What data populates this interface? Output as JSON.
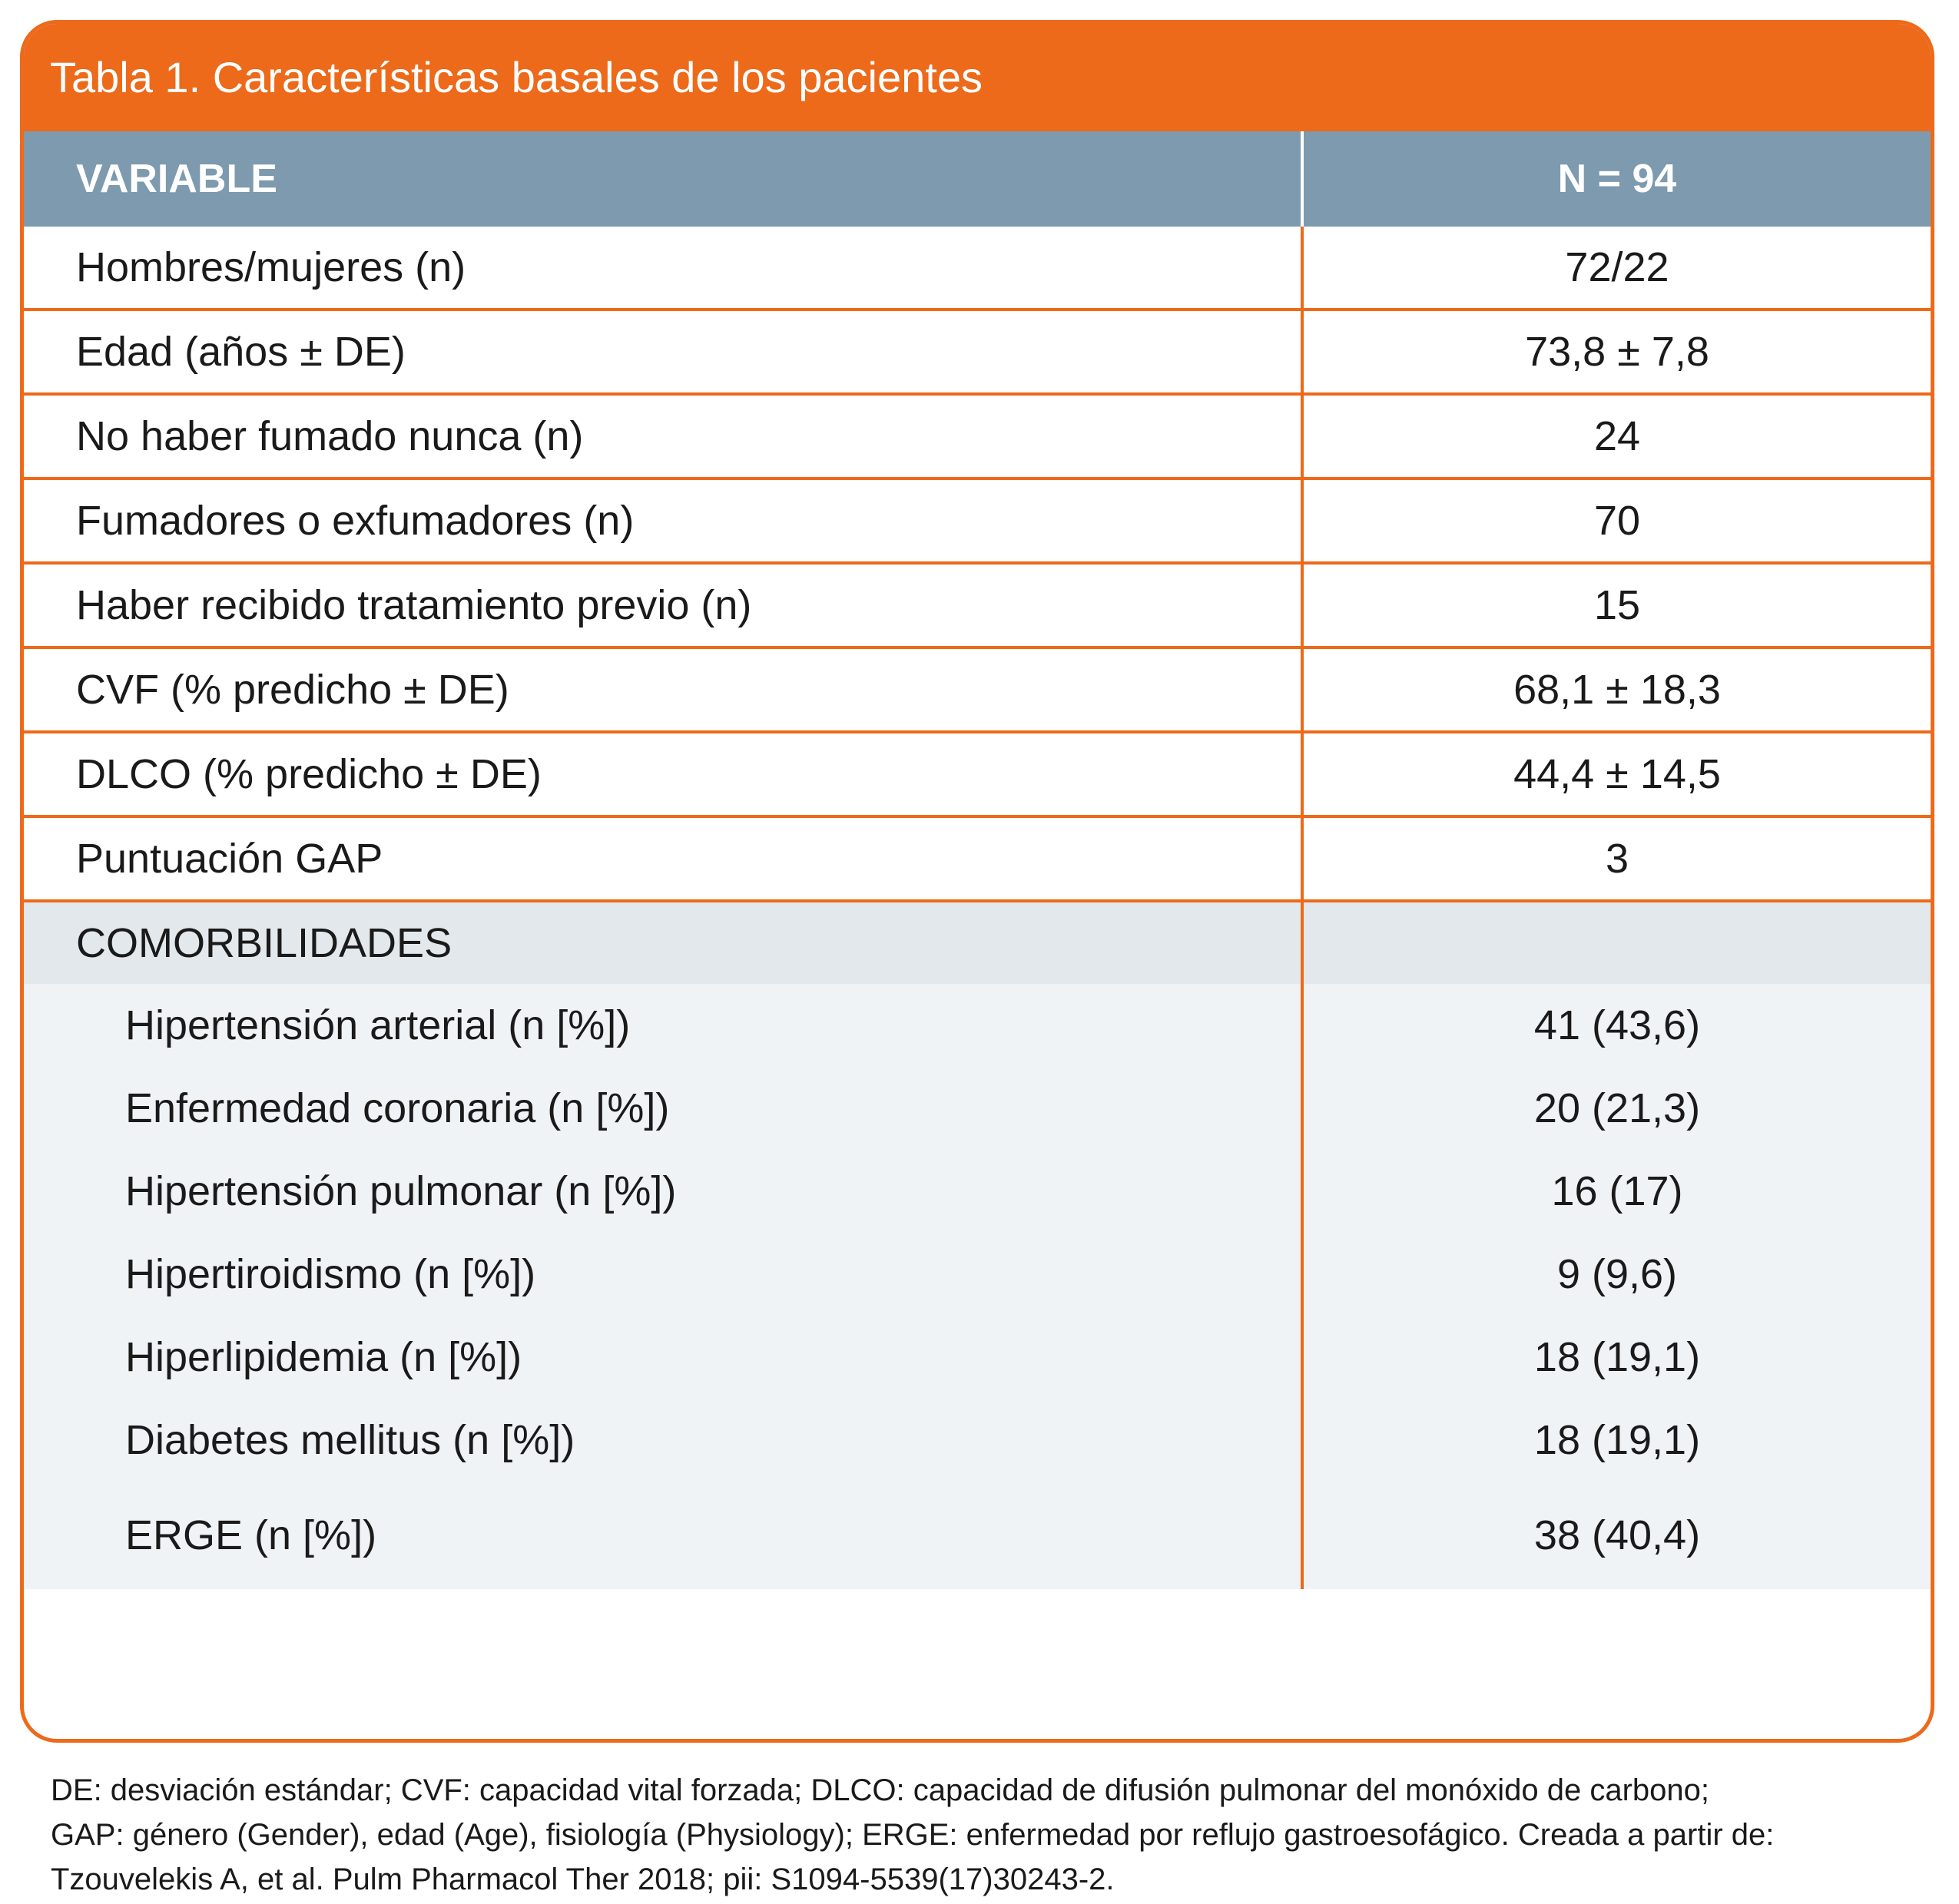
{
  "title": "Tabla 1. Características basales de los pacientes",
  "header": {
    "variable": "VARIABLE",
    "n": "N  = 94"
  },
  "rows": [
    {
      "label": "Hombres/mujeres (n)",
      "value": "72/22"
    },
    {
      "label": "Edad (años ± DE)",
      "value": "73,8 ± 7,8"
    },
    {
      "label": "No haber fumado nunca (n)",
      "value": "24"
    },
    {
      "label": "Fumadores o exfumadores (n)",
      "value": "70"
    },
    {
      "label": "Haber recibido tratamiento previo (n)",
      "value": "15"
    },
    {
      "label": "CVF (% predicho ± DE)",
      "value": "68,1 ± 18,3"
    },
    {
      "label": "DLCO (% predicho ± DE)",
      "value": "44,4 ± 14,5"
    },
    {
      "label": "Puntuación GAP",
      "value": "3"
    }
  ],
  "comorbidities": {
    "heading": "COMORBILIDADES",
    "items": [
      {
        "label": "Hipertensión arterial (n [%])",
        "value": "41 (43,6)"
      },
      {
        "label": "Enfermedad coronaria (n [%])",
        "value": "20 (21,3)"
      },
      {
        "label": "Hipertensión pulmonar (n [%])",
        "value": "16 (17)"
      },
      {
        "label": "Hipertiroidismo (n [%])",
        "value": "9 (9,6)"
      },
      {
        "label": "Hiperlipidemia (n [%])",
        "value": "18 (19,1)"
      },
      {
        "label": "Diabetes mellitus (n [%])",
        "value": "18 (19,1)"
      },
      {
        "label": "ERGE (n [%])",
        "value": "38 (40,4)"
      }
    ]
  },
  "footnote": [
    "DE: desviación estándar; CVF: capacidad vital forzada; DLCO: capacidad de difusión pulmonar del monóxido de carbono;",
    "GAP: género (Gender), edad (Age), fisiología (Physiology); ERGE: enfermedad por reflujo gastroesofágico. Creada a partir de:",
    "Tzouvelekis A, et al. Pulm Pharmacol Ther 2018; pii: S1094-5539(17)30243-2."
  ],
  "colors": {
    "accent": "#ec6a1a",
    "header": "#7d9aae",
    "comorb_head": "#e2e8ec",
    "comorb_body": "#eff3f6"
  }
}
